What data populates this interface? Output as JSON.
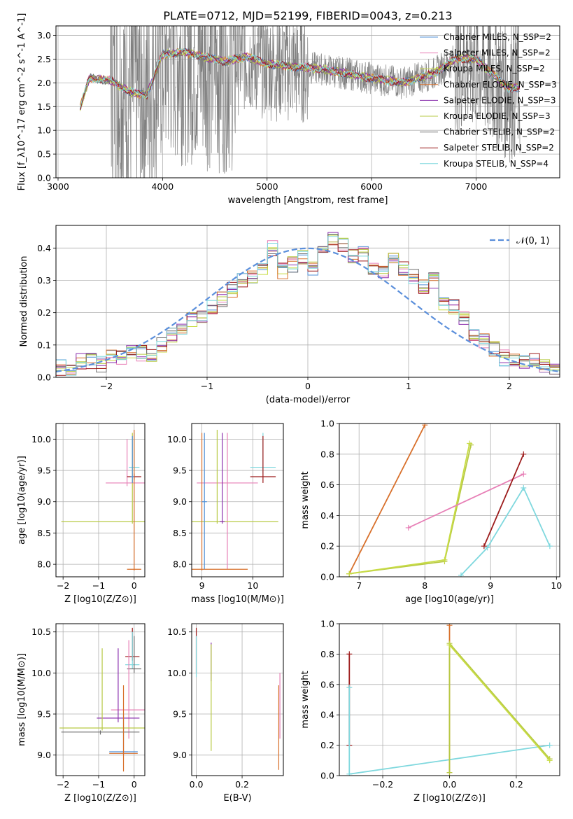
{
  "figure_title": "PLATE=0712, MJD=52199, FIBERID=0043, z=0.213",
  "colors": {
    "chabrier_miles": "#4f8fd6",
    "salpeter_miles": "#e77fb6",
    "kroupa_miles": "#c8dc45",
    "chabrier_elodie": "#d8702b",
    "salpeter_elodie": "#8a2fad",
    "kroupa_elodie": "#b7c944",
    "chabrier_stelib": "#6f6f6f",
    "salpeter_stelib": "#9c1b1b",
    "kroupa_stelib": "#7fd8de",
    "data": "#808080",
    "gaussian": "#5b8fdb"
  },
  "chart_data": [
    {
      "type": "line",
      "name": "spectrum",
      "xlabel": "wavelength [Angstrom, rest frame]",
      "ylabel": "Flux [f_λ10^-17 erg cm^-2 s^-1 A^-1]",
      "xlim": [
        2980,
        7800
      ],
      "ylim": [
        0,
        3.2
      ],
      "xticks": [
        "3000",
        "4000",
        "5000",
        "6000",
        "7000"
      ],
      "yticks": [
        "0.0",
        "0.5",
        "1.0",
        "1.5",
        "2.0",
        "2.5",
        "3.0"
      ],
      "legend": [
        "Chabrier MILES, N_SSP=2",
        "Salpeter MILES, N_SSP=2",
        "Kroupa MILES, N_SSP=2",
        "Chabrier ELODIE, N_SSP=3",
        "Salpeter ELODIE, N_SSP=3",
        "Kroupa ELODIE, N_SSP=3",
        "Chabrier STELIB, N_SSP=2",
        "Salpeter STELIB, N_SSP=2",
        "Kroupa STELIB, N_SSP=4"
      ],
      "legend_position": "right",
      "model_continuum": {
        "x": [
          3200,
          3300,
          3500,
          3700,
          3850,
          4000,
          4200,
          4400,
          4600,
          4800,
          5000,
          5200,
          5500,
          6000,
          6300,
          6600,
          6800,
          7000,
          7300
        ],
        "y": [
          1.4,
          2.1,
          2.05,
          1.8,
          1.75,
          2.6,
          2.65,
          2.55,
          2.45,
          2.55,
          2.4,
          2.35,
          2.3,
          2.1,
          2.0,
          2.2,
          2.5,
          2.5,
          1.9
        ]
      }
    },
    {
      "type": "line",
      "name": "residual-histogram",
      "xlabel": "(data-model)/error",
      "ylabel": "Normed distribution",
      "xlim": [
        -2.5,
        2.5
      ],
      "ylim": [
        0,
        0.47
      ],
      "xticks": [
        "−2",
        "−1",
        "0",
        "1",
        "2"
      ],
      "yticks": [
        "0.0",
        "0.1",
        "0.2",
        "0.3",
        "0.4"
      ],
      "legend": [
        "𝒩(0, 1)"
      ],
      "legend_position": "top-right",
      "bin_width": 0.1,
      "bin_start": -2.5,
      "hist_values": [
        0.03,
        0.025,
        0.05,
        0.05,
        0.04,
        0.07,
        0.065,
        0.08,
        0.075,
        0.07,
        0.1,
        0.13,
        0.15,
        0.18,
        0.19,
        0.22,
        0.24,
        0.27,
        0.3,
        0.31,
        0.33,
        0.4,
        0.33,
        0.35,
        0.37,
        0.34,
        0.39,
        0.43,
        0.41,
        0.37,
        0.38,
        0.33,
        0.32,
        0.36,
        0.34,
        0.31,
        0.28,
        0.3,
        0.23,
        0.22,
        0.18,
        0.13,
        0.11,
        0.09,
        0.06,
        0.05,
        0.045,
        0.05,
        0.03,
        0.025
      ]
    },
    {
      "type": "scatter",
      "name": "age-vs-metallicity",
      "xlabel": "Z [log10(Z/Z⊙)]",
      "ylabel": "age [log10(age/yr)]",
      "xlim": [
        -2.2,
        0.3
      ],
      "ylim": [
        7.8,
        10.25
      ],
      "xticks": [
        "−2",
        "−1",
        "0"
      ],
      "yticks": [
        "8.0",
        "8.5",
        "9.0",
        "9.5",
        "10.0"
      ],
      "points": [
        {
          "s": "kroupa_stelib",
          "x": 0.0,
          "y": 9.55,
          "xe": 0.15,
          "ylo": 9.5,
          "yhi": 10.1
        },
        {
          "s": "salpeter_miles",
          "x": -0.2,
          "y": 9.3,
          "xe": 0.6,
          "ylo": 9.25,
          "yhi": 10.0
        },
        {
          "s": "salpeter_stelib",
          "x": 0.0,
          "y": 9.4,
          "xe": 0.2,
          "ylo": 9.35,
          "yhi": 9.45
        },
        {
          "s": "kroupa_elodie",
          "x": -0.05,
          "y": 8.68,
          "xe": 2.0,
          "ylo": 8.65,
          "yhi": 10.1
        },
        {
          "s": "chabrier_elodie",
          "x": 0.0,
          "y": 7.92,
          "xe": 0.2,
          "ylo": 7.9,
          "yhi": 10.15
        },
        {
          "s": "chabrier_miles",
          "x": -0.05,
          "y": 9.4,
          "xe": 0.05,
          "ylo": 9.3,
          "yhi": 10.05
        }
      ]
    },
    {
      "type": "scatter",
      "name": "age-vs-mass",
      "xlabel": "mass [log10(M/M⊙)]",
      "ylabel": "",
      "xlim": [
        8.8,
        10.6
      ],
      "ylim": [
        7.8,
        10.25
      ],
      "xticks": [
        "9",
        "10"
      ],
      "yticks": [
        "8.0",
        "8.5",
        "9.0",
        "9.5",
        "10.0"
      ],
      "points": [
        {
          "s": "kroupa_stelib",
          "x": 10.2,
          "y": 9.55,
          "xe": 0.25,
          "ylo": 9.45,
          "yhi": 10.1
        },
        {
          "s": "salpeter_miles",
          "x": 9.5,
          "y": 9.3,
          "xe": 0.6,
          "ylo": 7.92,
          "yhi": 10.1
        },
        {
          "s": "salpeter_stelib",
          "x": 10.2,
          "y": 9.4,
          "xe": 0.25,
          "ylo": 9.3,
          "yhi": 10.05
        },
        {
          "s": "kroupa_elodie",
          "x": 9.3,
          "y": 8.68,
          "xe": 1.2,
          "ylo": 8.65,
          "yhi": 10.15
        },
        {
          "s": "chabrier_elodie",
          "x": 9.0,
          "y": 7.92,
          "xe": 0.9,
          "ylo": 7.9,
          "yhi": 10.1
        },
        {
          "s": "salpeter_elodie",
          "x": 9.4,
          "y": 8.68,
          "xe": 0.05,
          "ylo": 8.65,
          "yhi": 10.1
        },
        {
          "s": "chabrier_miles",
          "x": 9.05,
          "y": 9.0,
          "xe": 0.05,
          "ylo": 7.92,
          "yhi": 10.1
        }
      ]
    },
    {
      "type": "line",
      "name": "mass-weight-vs-age",
      "xlabel": "age [log10(age/yr)]",
      "ylabel": "mass weight",
      "xlim": [
        6.7,
        10.05
      ],
      "ylim": [
        0,
        1.0
      ],
      "xticks": [
        "7",
        "8",
        "9",
        "10"
      ],
      "yticks": [
        "0.0",
        "0.2",
        "0.4",
        "0.6",
        "0.8",
        "1.0"
      ],
      "series": [
        {
          "s": "chabrier_elodie",
          "x": [
            6.85,
            8.0
          ],
          "y": [
            0.02,
            0.99
          ]
        },
        {
          "s": "kroupa_elodie",
          "x": [
            6.85,
            8.3,
            8.7
          ],
          "y": [
            0.02,
            0.1,
            0.86
          ]
        },
        {
          "s": "kroupa_miles",
          "x": [
            6.85,
            8.3,
            8.68
          ],
          "y": [
            0.02,
            0.11,
            0.87
          ]
        },
        {
          "s": "salpeter_miles",
          "x": [
            7.75,
            9.5
          ],
          "y": [
            0.32,
            0.67
          ]
        },
        {
          "s": "salpeter_stelib",
          "x": [
            8.9,
            9.5
          ],
          "y": [
            0.2,
            0.8
          ]
        },
        {
          "s": "kroupa_stelib",
          "x": [
            8.55,
            8.95,
            9.5,
            9.9
          ],
          "y": [
            0.01,
            0.19,
            0.58,
            0.2
          ]
        }
      ]
    },
    {
      "type": "scatter",
      "name": "mass-vs-metallicity",
      "xlabel": "Z [log10(Z/Z⊙)]",
      "ylabel": "mass [log10(M/M⊙)]",
      "xlim": [
        -2.2,
        0.3
      ],
      "ylim": [
        8.75,
        10.6
      ],
      "xticks": [
        "−2",
        "−1",
        "0"
      ],
      "yticks": [
        "9.0",
        "9.5",
        "10.0",
        "10.5"
      ],
      "points": [
        {
          "s": "salpeter_stelib",
          "x": -0.05,
          "y": 10.2,
          "xe": 0.2,
          "ylo": 10.15,
          "yhi": 10.55
        },
        {
          "s": "kroupa_stelib",
          "x": -0.05,
          "y": 10.1,
          "xe": 0.2,
          "ylo": 10.05,
          "yhi": 10.5
        },
        {
          "s": "chabrier_stelib",
          "x": 0.0,
          "y": 10.05,
          "xe": 0.2,
          "ylo": 10.0,
          "yhi": 10.45
        },
        {
          "s": "salpeter_miles",
          "x": -0.15,
          "y": 9.55,
          "xe": 0.5,
          "ylo": 9.2,
          "yhi": 10.4
        },
        {
          "s": "salpeter_elodie",
          "x": -0.45,
          "y": 9.45,
          "xe": 0.6,
          "ylo": 9.4,
          "yhi": 10.3
        },
        {
          "s": "kroupa_elodie",
          "x": -0.9,
          "y": 9.33,
          "xe": 1.2,
          "ylo": 9.3,
          "yhi": 10.3
        },
        {
          "s": "chabrier_stelib",
          "x": -0.95,
          "y": 9.28,
          "xe": 1.1,
          "ylo": 9.25,
          "yhi": 9.3
        },
        {
          "s": "chabrier_miles",
          "x": -0.3,
          "y": 9.04,
          "xe": 0.4,
          "ylo": 9.0,
          "yhi": 9.5
        },
        {
          "s": "chabrier_elodie",
          "x": -0.3,
          "y": 9.02,
          "xe": 0.4,
          "ylo": 8.8,
          "yhi": 9.85
        }
      ]
    },
    {
      "type": "scatter",
      "name": "mass-vs-ebv",
      "xlabel": "E(B-V)",
      "ylabel": "",
      "xlim": [
        -0.02,
        0.38
      ],
      "ylim": [
        8.75,
        10.6
      ],
      "xticks": [
        "0.0",
        "0.2"
      ],
      "yticks": [
        "9.0",
        "9.5",
        "10.0",
        "10.5"
      ],
      "points": [
        {
          "s": "salpeter_stelib",
          "x": 0.0,
          "ylo": 10.0,
          "yhi": 10.55
        },
        {
          "s": "kroupa_stelib",
          "x": 0.0,
          "ylo": 9.95,
          "yhi": 10.45
        },
        {
          "s": "salpeter_elodie",
          "x": 0.065,
          "ylo": 9.9,
          "yhi": 10.37
        },
        {
          "s": "kroupa_elodie",
          "x": 0.065,
          "ylo": 9.05,
          "yhi": 10.35
        },
        {
          "s": "chabrier_elodie",
          "x": 0.36,
          "ylo": 8.82,
          "yhi": 9.85
        },
        {
          "s": "salpeter_miles",
          "x": 0.365,
          "ylo": 9.2,
          "yhi": 10.0
        }
      ]
    },
    {
      "type": "line",
      "name": "mass-weight-vs-metallicity",
      "xlabel": "Z [log10(Z/Z⊙)]",
      "ylabel": "mass weight",
      "xlim": [
        -0.33,
        0.33
      ],
      "ylim": [
        0,
        1.0
      ],
      "xticks": [
        "−0.2",
        "0.0",
        "0.2"
      ],
      "yticks": [
        "0.0",
        "0.2",
        "0.4",
        "0.6",
        "0.8",
        "1.0"
      ],
      "series": [
        {
          "s": "salpeter_stelib",
          "x": [
            -0.3,
            -0.3
          ],
          "y": [
            0.2,
            0.8
          ]
        },
        {
          "s": "kroupa_stelib",
          "x": [
            -0.3,
            -0.3,
            0.3
          ],
          "y": [
            0.58,
            0.01,
            0.2
          ]
        },
        {
          "s": "chabrier_elodie",
          "x": [
            0.0,
            0.0
          ],
          "y": [
            0.02,
            0.99
          ]
        },
        {
          "s": "kroupa_elodie",
          "x": [
            0.0,
            0.0,
            0.3
          ],
          "y": [
            0.02,
            0.87,
            0.11
          ]
        },
        {
          "s": "kroupa_miles",
          "x": [
            0.0,
            0.3
          ],
          "y": [
            0.86,
            0.1
          ]
        }
      ]
    }
  ]
}
